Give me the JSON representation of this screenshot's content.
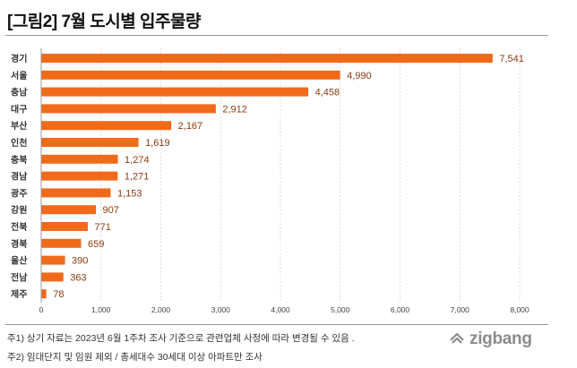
{
  "title": "[그림2] 7월 도시별 입주물량",
  "notes": [
    "주1) 상기 자료는 2023년 6월 1주차 조사 기준으로 관련업체 사정에 따라 변경될 수 있음 .",
    "주2) 임대단지 및 임원 제외 / 총세대수 30세대 이상 아파트만 조사"
  ],
  "brand": {
    "name": "zigbang",
    "icon": "zigbang-logo-icon"
  },
  "colors": {
    "bar": "#f06a1a",
    "value_label": "#8a3a0e",
    "grid": "#d6d6d6"
  },
  "chart_data": {
    "type": "bar",
    "orientation": "horizontal",
    "categories": [
      "경기",
      "서울",
      "충남",
      "대구",
      "부산",
      "인천",
      "충북",
      "경남",
      "광주",
      "강원",
      "전북",
      "경북",
      "울산",
      "전남",
      "제주"
    ],
    "values": [
      7541,
      4990,
      4458,
      2912,
      2167,
      1619,
      1274,
      1271,
      1153,
      907,
      771,
      659,
      390,
      363,
      78
    ],
    "value_labels": [
      "7,541",
      "4,990",
      "4,458",
      "2,912",
      "2,167",
      "1,619",
      "1,274",
      "1,271",
      "1,153",
      "907",
      "771",
      "659",
      "390",
      "363",
      "78"
    ],
    "xlim": [
      0,
      8000
    ],
    "xticks": [
      0,
      1000,
      2000,
      3000,
      4000,
      5000,
      6000,
      7000,
      8000
    ],
    "xtick_labels": [
      "0",
      "1,000",
      "2,000",
      "3,000",
      "4,000",
      "5,000",
      "6,000",
      "7,000",
      "8,000"
    ],
    "grid": true,
    "legend": "none"
  }
}
